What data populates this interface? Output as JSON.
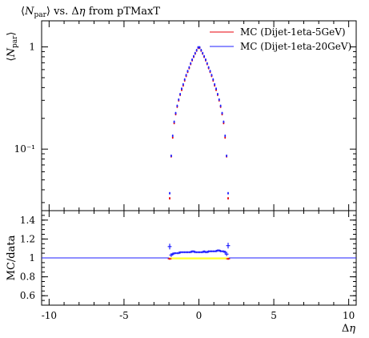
{
  "chart_data": [
    {
      "type": "scatter",
      "title": "⟨N_par⟩ vs. Δη from pTMaxT",
      "ylabel": "⟨N_par⟩",
      "xlabel": "",
      "xlim": [
        -10.5,
        10.5
      ],
      "ylim": [
        0.025,
        1.8
      ],
      "yscale": "log",
      "yticks": [
        {
          "value": 1,
          "label": "1"
        },
        {
          "value": 0.1,
          "label": "10⁻¹"
        }
      ],
      "legend_position": "top-right",
      "series": [
        {
          "name": "MC (Dijet-1eta-5GeV)",
          "color": "#e8000b",
          "x": [
            -1.95,
            -1.85,
            -1.75,
            -1.65,
            -1.55,
            -1.45,
            -1.35,
            -1.25,
            -1.15,
            -1.05,
            -0.95,
            -0.85,
            -0.75,
            -0.65,
            -0.55,
            -0.45,
            -0.35,
            -0.25,
            -0.15,
            -0.05,
            0.05,
            0.15,
            0.25,
            0.35,
            0.45,
            0.55,
            0.65,
            0.75,
            0.85,
            0.95,
            1.05,
            1.15,
            1.25,
            1.35,
            1.45,
            1.55,
            1.65,
            1.75,
            1.85,
            1.95
          ],
          "y": [
            0.033,
            0.085,
            0.13,
            0.18,
            0.22,
            0.26,
            0.3,
            0.34,
            0.38,
            0.42,
            0.47,
            0.52,
            0.57,
            0.62,
            0.68,
            0.74,
            0.8,
            0.86,
            0.92,
            0.98,
            0.98,
            0.92,
            0.86,
            0.8,
            0.74,
            0.68,
            0.62,
            0.57,
            0.52,
            0.47,
            0.42,
            0.38,
            0.34,
            0.3,
            0.26,
            0.22,
            0.18,
            0.13,
            0.085,
            0.033
          ]
        },
        {
          "name": "MC (Dijet-1eta-20GeV)",
          "color": "#1f1fff",
          "x": [
            -1.95,
            -1.85,
            -1.75,
            -1.65,
            -1.55,
            -1.45,
            -1.35,
            -1.25,
            -1.15,
            -1.05,
            -0.95,
            -0.85,
            -0.75,
            -0.65,
            -0.55,
            -0.45,
            -0.35,
            -0.25,
            -0.15,
            -0.05,
            0.05,
            0.15,
            0.25,
            0.35,
            0.45,
            0.55,
            0.65,
            0.75,
            0.85,
            0.95,
            1.05,
            1.15,
            1.25,
            1.35,
            1.45,
            1.55,
            1.65,
            1.75,
            1.85,
            1.95
          ],
          "y": [
            0.037,
            0.086,
            0.135,
            0.185,
            0.225,
            0.265,
            0.305,
            0.345,
            0.39,
            0.43,
            0.48,
            0.53,
            0.58,
            0.63,
            0.69,
            0.75,
            0.81,
            0.87,
            0.93,
            0.99,
            0.99,
            0.93,
            0.87,
            0.81,
            0.75,
            0.69,
            0.63,
            0.58,
            0.53,
            0.48,
            0.43,
            0.39,
            0.345,
            0.305,
            0.265,
            0.225,
            0.185,
            0.135,
            0.086,
            0.037
          ]
        }
      ]
    },
    {
      "type": "scatter",
      "ylabel": "MC/data",
      "xlabel": "Δη",
      "xlim": [
        -10.5,
        10.5
      ],
      "ylim": [
        0.5,
        1.5
      ],
      "xticks": [
        -10,
        -5,
        0,
        5,
        10
      ],
      "yticks": [
        0.6,
        0.8,
        1,
        1.2,
        1.4
      ],
      "reference_line": 1,
      "band_color": "#ffff33",
      "band": {
        "x": [
          -2.0,
          2.0
        ],
        "lo": 0.985,
        "hi": 1.005
      },
      "series": [
        {
          "name": "MC (Dijet-1eta-5GeV)",
          "color": "#e8000b",
          "x": [
            -1.95,
            1.95
          ],
          "y": [
            0.99,
            0.99
          ]
        },
        {
          "name": "MC (Dijet-1eta-20GeV)",
          "color": "#1f1fff",
          "x": [
            -1.95,
            -1.85,
            -1.75,
            -1.65,
            -1.55,
            -1.45,
            -1.35,
            -1.25,
            -1.15,
            -1.05,
            -0.95,
            -0.85,
            -0.75,
            -0.65,
            -0.55,
            -0.45,
            -0.35,
            -0.25,
            -0.15,
            -0.05,
            0.05,
            0.15,
            0.25,
            0.35,
            0.45,
            0.55,
            0.65,
            0.75,
            0.85,
            0.95,
            1.05,
            1.15,
            1.25,
            1.35,
            1.45,
            1.55,
            1.65,
            1.75,
            1.85,
            1.95
          ],
          "y": [
            1.12,
            1.03,
            1.04,
            1.05,
            1.05,
            1.05,
            1.05,
            1.06,
            1.06,
            1.06,
            1.06,
            1.06,
            1.06,
            1.06,
            1.06,
            1.07,
            1.07,
            1.06,
            1.06,
            1.06,
            1.06,
            1.06,
            1.06,
            1.07,
            1.06,
            1.06,
            1.07,
            1.07,
            1.07,
            1.07,
            1.07,
            1.07,
            1.08,
            1.08,
            1.07,
            1.07,
            1.07,
            1.06,
            1.04,
            1.13
          ],
          "err": [
            0.03,
            0.02,
            0.015,
            0.01,
            0.01,
            0.01,
            0.01,
            0.01,
            0.01,
            0.01,
            0.01,
            0.01,
            0.01,
            0.01,
            0.01,
            0.01,
            0.01,
            0.01,
            0.01,
            0.01,
            0.01,
            0.01,
            0.01,
            0.01,
            0.01,
            0.01,
            0.01,
            0.01,
            0.01,
            0.01,
            0.01,
            0.01,
            0.01,
            0.01,
            0.01,
            0.01,
            0.01,
            0.015,
            0.02,
            0.03
          ]
        }
      ]
    }
  ]
}
